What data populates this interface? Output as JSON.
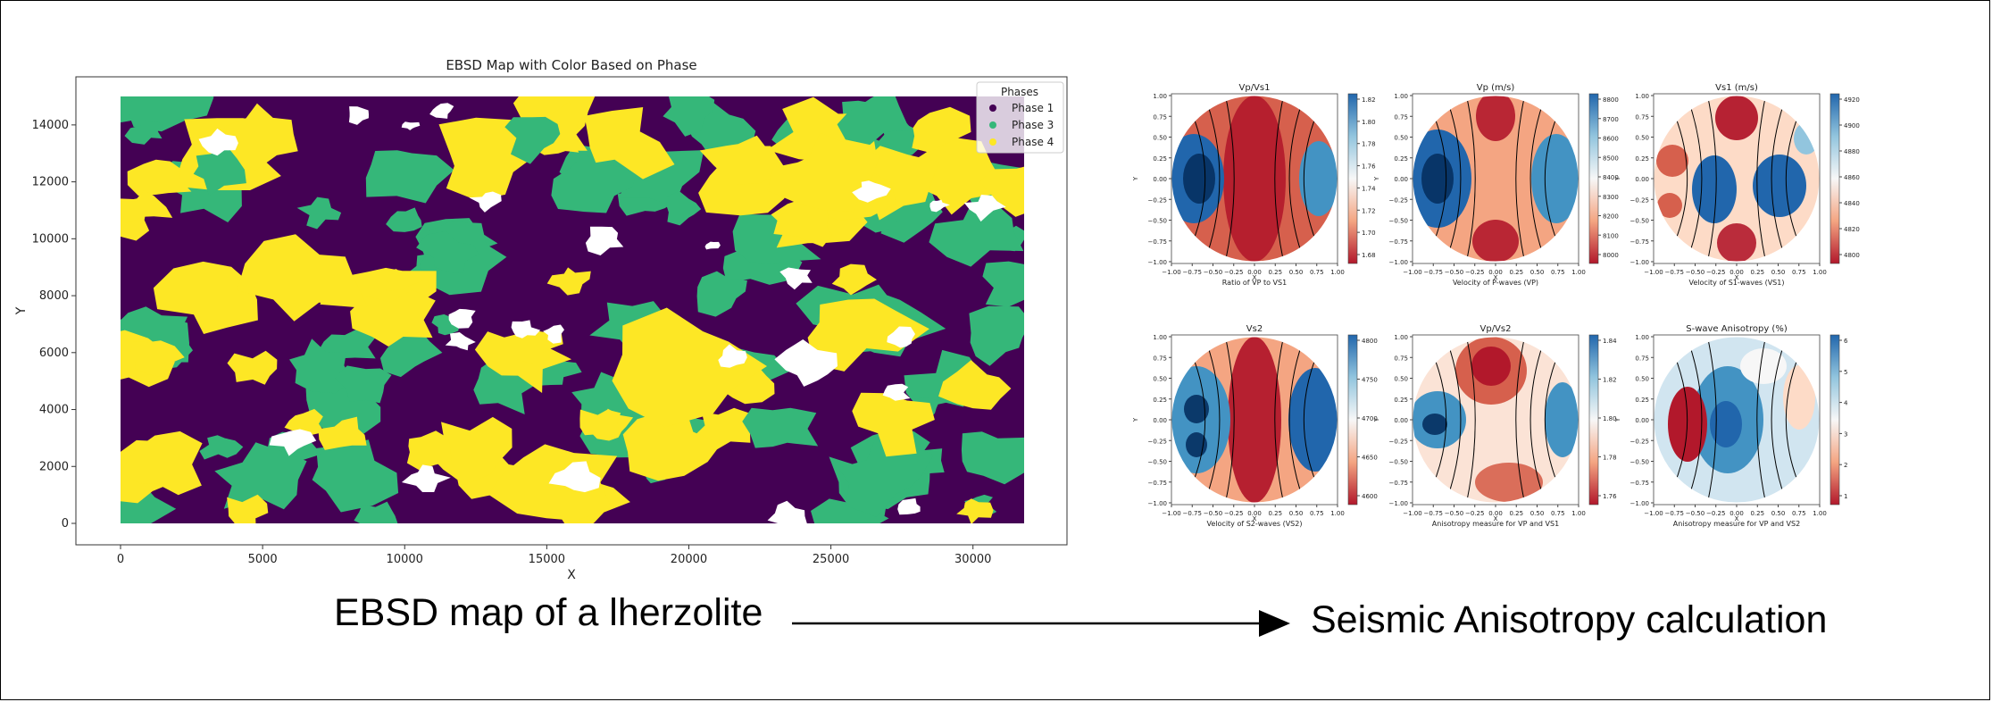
{
  "captions": {
    "left": "EBSD map of a lherzolite",
    "right": "Seismic Anisotropy calculation"
  },
  "colors": {
    "phase1": "#440154",
    "phase3": "#35b779",
    "phase4": "#fde725",
    "background": "#ffffff",
    "red": "#b2182b",
    "blue": "#2166ac"
  },
  "ebsd_map": {
    "title": "EBSD Map with Color Based on Phase",
    "xlabel": "X",
    "ylabel": "Y",
    "xticks": [
      "0",
      "5000",
      "10000",
      "15000",
      "20000",
      "25000",
      "30000"
    ],
    "yticks": [
      "0",
      "2000",
      "4000",
      "6000",
      "8000",
      "10000",
      "12000",
      "14000"
    ],
    "legend": {
      "title": "Phases",
      "items": [
        "Phase 1",
        "Phase 3",
        "Phase 4"
      ]
    }
  },
  "pole_figures": [
    {
      "title": "Vp/Vs1",
      "xlabel": "Ratio of VP to VS1",
      "colorbar_ticks": [
        "1.82",
        "1.80",
        "1.78",
        "1.76",
        "1.74",
        "1.72",
        "1.70",
        "1.68"
      ]
    },
    {
      "title": "Vp (m/s)",
      "xlabel": "Velocity of P-waves (VP)",
      "colorbar_ticks": [
        "8800",
        "8700",
        "8600",
        "8500",
        "8400",
        "8300",
        "8200",
        "8100",
        "8000"
      ]
    },
    {
      "title": "Vs1 (m/s)",
      "xlabel": "Velocity of S1-waves (VS1)",
      "colorbar_ticks": [
        "4920",
        "4900",
        "4880",
        "4860",
        "4840",
        "4820",
        "4800"
      ]
    },
    {
      "title": "Vs2",
      "xlabel": "Velocity of S2-waves (VS2)",
      "colorbar_ticks": [
        "4800",
        "4750",
        "4700",
        "4650",
        "4600"
      ]
    },
    {
      "title": "Vp/Vs2",
      "xlabel": "Anisotropy measure for VP and VS1",
      "colorbar_ticks": [
        "1.84",
        "1.82",
        "1.80",
        "1.78",
        "1.76"
      ]
    },
    {
      "title": "S-wave Anisotropy (%)",
      "xlabel": "Anisotropy measure for VP and VS2",
      "colorbar_ticks": [
        "6",
        "5",
        "4",
        "3",
        "2",
        "1"
      ]
    }
  ],
  "pole_axes": {
    "xticks": [
      "−1.00",
      "−0.75",
      "−0.50",
      "−0.25",
      "0.00",
      "0.25",
      "0.50",
      "0.75",
      "1.00"
    ],
    "yticks": [
      "1.00",
      "0.75",
      "0.50",
      "0.25",
      "0.00",
      "−0.25",
      "−0.50",
      "−0.75",
      "−1.00"
    ],
    "ylabel": "Y",
    "xlabel_axis": "X"
  }
}
